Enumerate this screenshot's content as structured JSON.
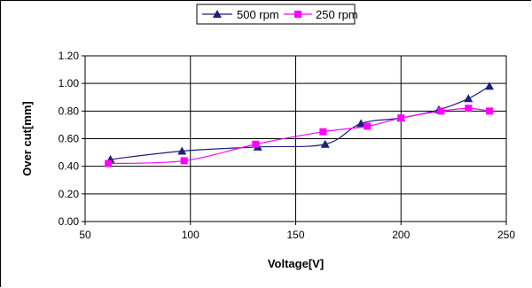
{
  "chart_data": {
    "type": "line",
    "xlabel": "Voltage[V]",
    "ylabel": "Over cut[mm]",
    "xlim": [
      50,
      250
    ],
    "ylim": [
      0,
      1.2
    ],
    "x_ticks": [
      "50",
      "100",
      "150",
      "200",
      "250"
    ],
    "y_ticks": [
      "0.00",
      "0.20",
      "0.40",
      "0.60",
      "0.80",
      "1.00",
      "1.20"
    ],
    "grid": true,
    "legend_position": "top",
    "series": [
      {
        "name": "500 rpm",
        "color": "#1f1f7a",
        "marker": "triangle",
        "points": [
          [
            62,
            0.45
          ],
          [
            96,
            0.51
          ],
          [
            132,
            0.54
          ],
          [
            164,
            0.56
          ],
          [
            181,
            0.71
          ],
          [
            200,
            0.75
          ],
          [
            218,
            0.81
          ],
          [
            232,
            0.89
          ],
          [
            242,
            0.98
          ]
        ]
      },
      {
        "name": "250 rpm",
        "color": "#ff00ff",
        "marker": "square",
        "points": [
          [
            61,
            0.42
          ],
          [
            97,
            0.44
          ],
          [
            131,
            0.56
          ],
          [
            163,
            0.65
          ],
          [
            184,
            0.69
          ],
          [
            200,
            0.75
          ],
          [
            219,
            0.8
          ],
          [
            232,
            0.82
          ],
          [
            242,
            0.8
          ]
        ]
      }
    ]
  }
}
